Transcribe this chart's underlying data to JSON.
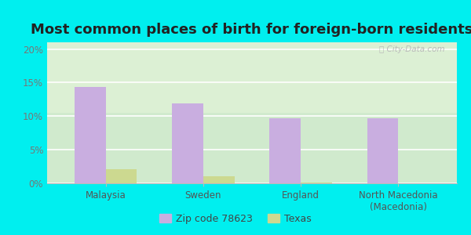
{
  "title": "Most common places of birth for foreign-born residents",
  "categories": [
    "Malaysia",
    "Sweden",
    "England",
    "North Macedonia\n(Macedonia)"
  ],
  "zip_values": [
    14.3,
    11.9,
    9.7,
    9.7
  ],
  "texas_values": [
    2.1,
    1.1,
    0.1,
    0.05
  ],
  "zip_color": "#c9aee0",
  "texas_color": "#ccd990",
  "background_color": "#00efef",
  "plot_bg_top": "#e8f5e8",
  "plot_bg_bottom": "#f5fff0",
  "ylim": [
    0,
    21
  ],
  "yticks": [
    0,
    5,
    10,
    15,
    20
  ],
  "yticklabels": [
    "0%",
    "5%",
    "10%",
    "15%",
    "20%"
  ],
  "legend_labels": [
    "Zip code 78623",
    "Texas"
  ],
  "bar_width": 0.32,
  "title_fontsize": 13,
  "tick_fontsize": 8.5,
  "legend_fontsize": 9
}
